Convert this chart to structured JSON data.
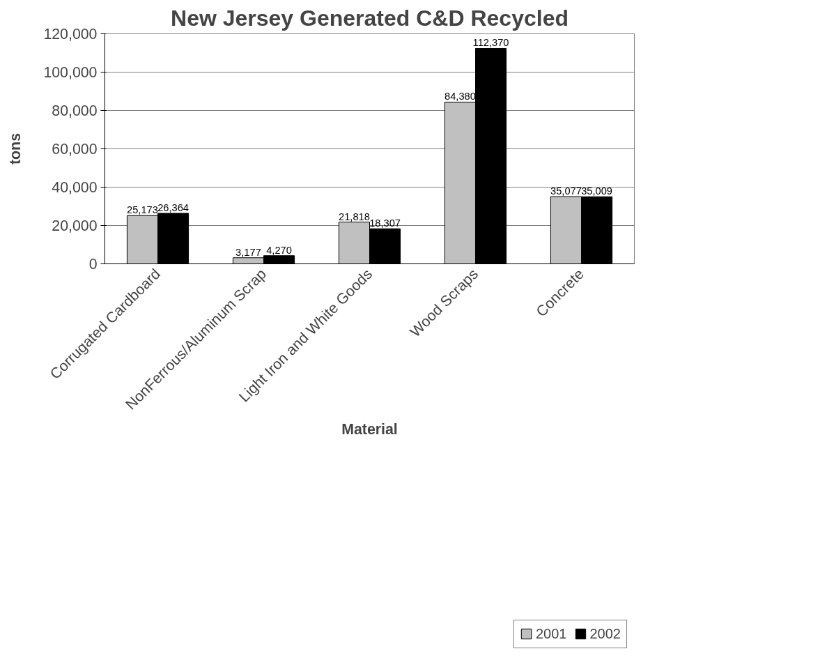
{
  "chart_data": {
    "type": "bar",
    "title": "New Jersey Generated C&D Recycled",
    "xlabel": "Material",
    "ylabel": "tons",
    "categories": [
      "Corrugated Cardboard",
      "NonFerrous/Aluminum Scrap",
      "Light Iron and White Goods",
      "Wood Scraps",
      "Concrete"
    ],
    "series": [
      {
        "name": "2001",
        "color": "#c0c0c0",
        "values": [
          25173,
          3177,
          21818,
          84380,
          35077
        ],
        "value_labels": [
          "25,173",
          "3,177",
          "21,818",
          "84,380",
          "35,077"
        ]
      },
      {
        "name": "2002",
        "color": "#000000",
        "values": [
          26364,
          4270,
          18307,
          112370,
          35009
        ],
        "value_labels": [
          "26,364",
          "4,270",
          "18,307",
          "112,370",
          "35,009"
        ]
      }
    ],
    "ylim": [
      0,
      120000
    ],
    "yticks": [
      {
        "value": 0,
        "label": "0"
      },
      {
        "value": 20000,
        "label": "20,000"
      },
      {
        "value": 40000,
        "label": "40,000"
      },
      {
        "value": 60000,
        "label": "60,000"
      },
      {
        "value": 80000,
        "label": "80,000"
      },
      {
        "value": 100000,
        "label": "100,000"
      },
      {
        "value": 120000,
        "label": "120,000"
      }
    ],
    "grid": "y",
    "legend": "bottom right",
    "data_labels": true
  }
}
